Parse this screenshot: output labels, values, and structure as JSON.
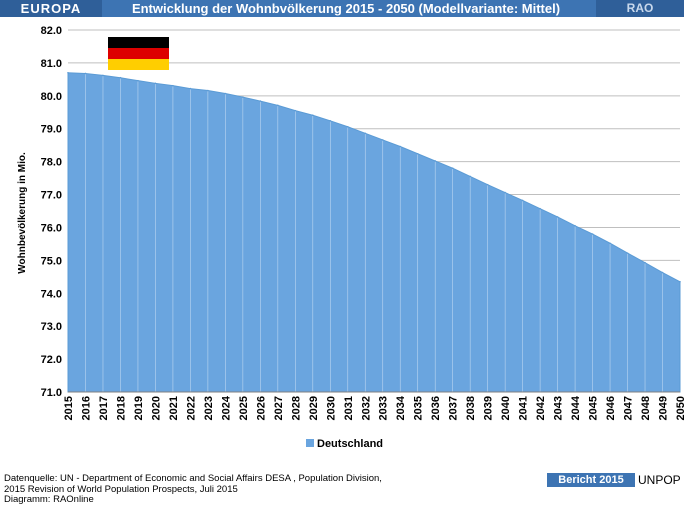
{
  "header": {
    "region": "EUROPA",
    "title": "Entwicklung der Wohnbvölkerung  2015 - 2050 (Modellvariante: Mittel)",
    "brand": "RAO"
  },
  "footer": {
    "source_lines": [
      "Datenquelle: UN -  Department of Economic and Social Affairs DESA , Population Division,",
      "2015 Revision of World Population Prospects, Juli 2015",
      "Diagramm: RAOnline"
    ],
    "badge": "Bericht 2015",
    "brand": "UNPOP"
  },
  "colors": {
    "area_fill": "#6aa5df",
    "area_stroke": "#5b9bd5",
    "gridline": "#bfbfbf",
    "flag_black": "#000000",
    "flag_red": "#dd0000",
    "flag_gold": "#ffce00"
  },
  "icons": {
    "flag": "germany-flag-icon"
  },
  "chart_data": {
    "type": "area",
    "title": "",
    "xlabel": "",
    "ylabel": "Wohnbevölkerung in Mio.",
    "ylim": [
      71.0,
      82.0
    ],
    "y_ticks": [
      "71.0",
      "72.0",
      "73.0",
      "74.0",
      "75.0",
      "76.0",
      "77.0",
      "78.0",
      "79.0",
      "80.0",
      "81.0",
      "82.0"
    ],
    "grid": true,
    "legend_position": "bottom",
    "x": [
      "2015",
      "2016",
      "2017",
      "2018",
      "2019",
      "2020",
      "2021",
      "2022",
      "2023",
      "2024",
      "2025",
      "2026",
      "2027",
      "2028",
      "2029",
      "2030",
      "2031",
      "2032",
      "2033",
      "2034",
      "2035",
      "2036",
      "2037",
      "2038",
      "2039",
      "2040",
      "2041",
      "2042",
      "2043",
      "2044",
      "2045",
      "2046",
      "2047",
      "2048",
      "2049",
      "2050"
    ],
    "series": [
      {
        "name": "Deutschland",
        "values": [
          80.7,
          80.68,
          80.62,
          80.55,
          80.46,
          80.38,
          80.31,
          80.22,
          80.16,
          80.07,
          79.96,
          79.84,
          79.71,
          79.55,
          79.41,
          79.24,
          79.06,
          78.86,
          78.66,
          78.46,
          78.24,
          78.02,
          77.8,
          77.55,
          77.3,
          77.06,
          76.82,
          76.57,
          76.32,
          76.05,
          75.8,
          75.52,
          75.22,
          74.93,
          74.63,
          74.35
        ]
      }
    ]
  }
}
